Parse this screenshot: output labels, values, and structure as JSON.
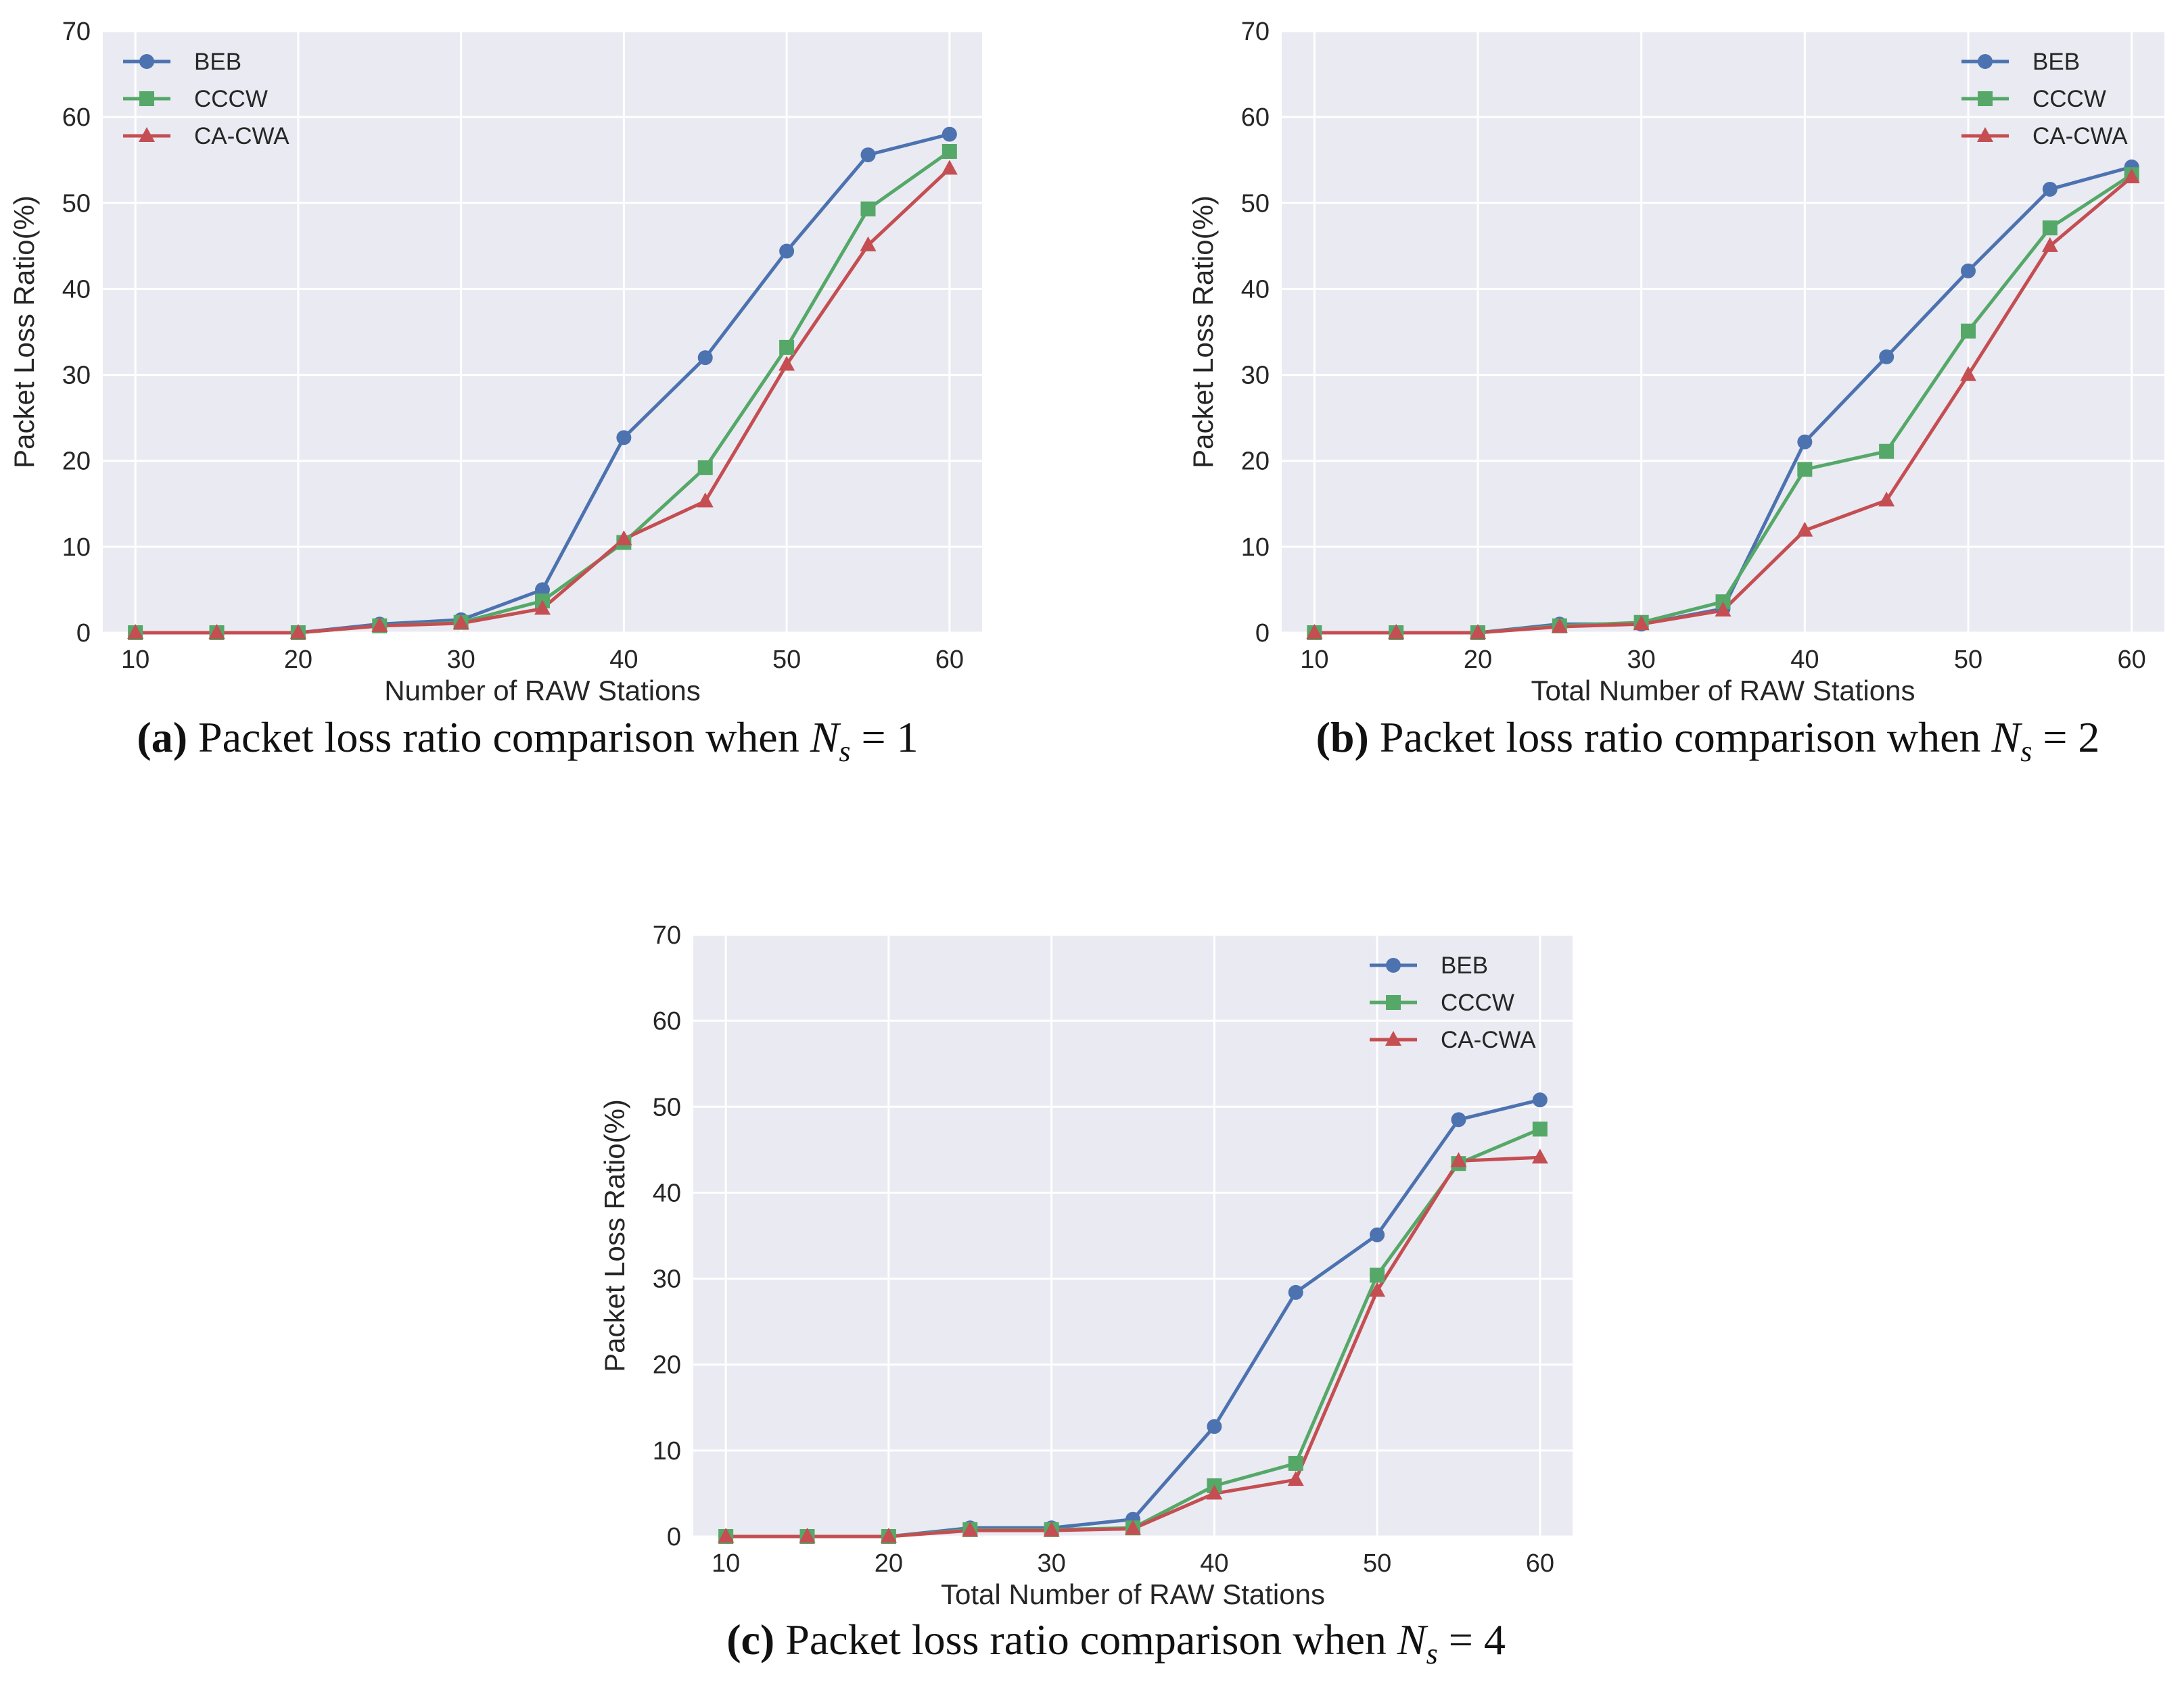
{
  "series_styles": [
    {
      "name": "BEB",
      "color": "#4c72b0",
      "marker": "circle"
    },
    {
      "name": "CCCW",
      "color": "#55a868",
      "marker": "square"
    },
    {
      "name": "CA-CWA",
      "color": "#c44e52",
      "marker": "triangle"
    }
  ],
  "theme": {
    "background": "#eaeaf2",
    "grid": "#ffffff"
  },
  "chart_data": [
    {
      "type": "line",
      "panel": "a",
      "caption_label": "(a)",
      "caption_text": "Packet loss ratio comparison when",
      "caption_var": "N",
      "caption_sub": "s",
      "caption_eq": "= 1",
      "xlabel": "Number of RAW Stations",
      "ylabel": "Packet Loss Ratio(%)",
      "xlim": [
        8,
        62
      ],
      "ylim": [
        0,
        70
      ],
      "xticks": [
        10,
        20,
        30,
        40,
        50,
        60
      ],
      "yticks": [
        0,
        10,
        20,
        30,
        40,
        50,
        60,
        70
      ],
      "legend_position": "top-left",
      "x": [
        10,
        15,
        20,
        25,
        30,
        35,
        40,
        45,
        50,
        55,
        60
      ],
      "series": [
        {
          "name": "BEB",
          "values": [
            0,
            0,
            0,
            1.0,
            1.5,
            5.0,
            22.7,
            32.0,
            44.4,
            55.6,
            58.0
          ]
        },
        {
          "name": "CCCW",
          "values": [
            0,
            0,
            0,
            0.8,
            1.2,
            3.7,
            10.5,
            19.2,
            33.2,
            49.3,
            56.0
          ]
        },
        {
          "name": "CA-CWA",
          "values": [
            0,
            0,
            0,
            0.8,
            1.1,
            2.8,
            10.9,
            15.3,
            31.2,
            45.1,
            54.0
          ]
        }
      ]
    },
    {
      "type": "line",
      "panel": "b",
      "caption_label": "(b)",
      "caption_text": "Packet loss ratio comparison when",
      "caption_var": "N",
      "caption_sub": "s",
      "caption_eq": "= 2",
      "xlabel": "Total Number of RAW Stations",
      "ylabel": "Packet Loss Ratio(%)",
      "xlim": [
        8,
        62
      ],
      "ylim": [
        0,
        70
      ],
      "xticks": [
        10,
        20,
        30,
        40,
        50,
        60
      ],
      "yticks": [
        0,
        10,
        20,
        30,
        40,
        50,
        60,
        70
      ],
      "legend_position": "top-right",
      "x": [
        10,
        15,
        20,
        25,
        30,
        35,
        40,
        45,
        50,
        55,
        60
      ],
      "series": [
        {
          "name": "BEB",
          "values": [
            0,
            0,
            0,
            1.0,
            1.0,
            2.8,
            22.2,
            32.1,
            42.1,
            51.6,
            54.2
          ]
        },
        {
          "name": "CCCW",
          "values": [
            0,
            0,
            0,
            0.8,
            1.2,
            3.6,
            19.0,
            21.1,
            35.1,
            47.1,
            53.3
          ]
        },
        {
          "name": "CA-CWA",
          "values": [
            0,
            0,
            0,
            0.7,
            1.0,
            2.6,
            11.9,
            15.4,
            30.0,
            45.0,
            53.0
          ]
        }
      ]
    },
    {
      "type": "line",
      "panel": "c",
      "caption_label": "(c)",
      "caption_text": "Packet loss ratio comparison when",
      "caption_var": "N",
      "caption_sub": "s",
      "caption_eq": "= 4",
      "xlabel": "Total Number of RAW Stations",
      "ylabel": "Packet Loss Ratio(%)",
      "xlim": [
        8,
        62
      ],
      "ylim": [
        0,
        70
      ],
      "xticks": [
        10,
        20,
        30,
        40,
        50,
        60
      ],
      "yticks": [
        0,
        10,
        20,
        30,
        40,
        50,
        60,
        70
      ],
      "legend_position": "top-right",
      "x": [
        10,
        15,
        20,
        25,
        30,
        35,
        40,
        45,
        50,
        55,
        60
      ],
      "series": [
        {
          "name": "BEB",
          "values": [
            0,
            0,
            0,
            1.0,
            1.0,
            2.0,
            12.8,
            28.4,
            35.1,
            48.5,
            50.8
          ]
        },
        {
          "name": "CCCW",
          "values": [
            0,
            0,
            0,
            0.8,
            0.8,
            1.0,
            5.9,
            8.5,
            30.4,
            43.4,
            47.4
          ]
        },
        {
          "name": "CA-CWA",
          "values": [
            0,
            0,
            0,
            0.7,
            0.7,
            0.9,
            5.0,
            6.6,
            28.6,
            43.7,
            44.1
          ]
        }
      ]
    }
  ]
}
